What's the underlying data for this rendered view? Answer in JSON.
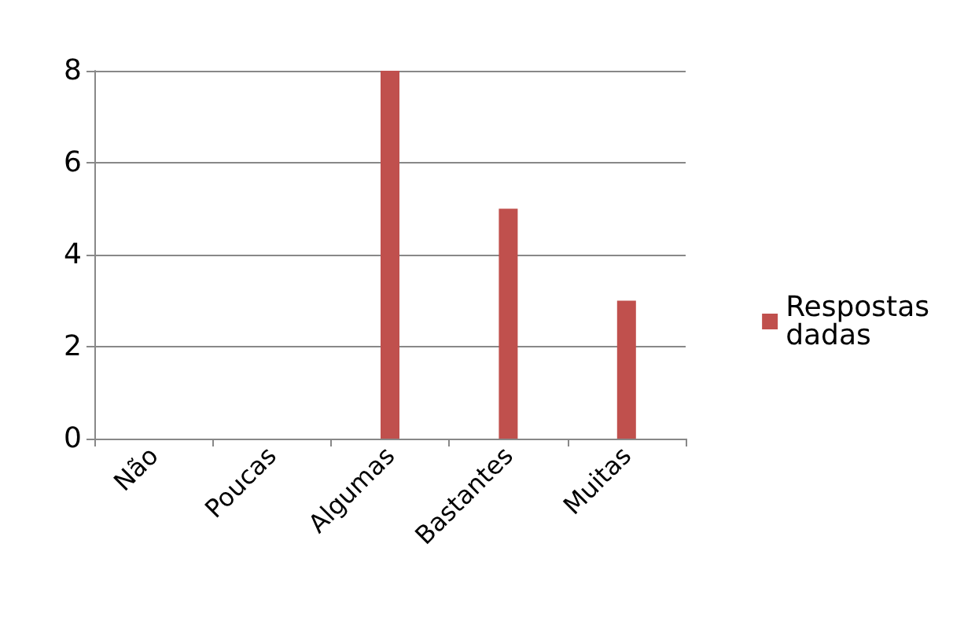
{
  "chart_data": {
    "type": "bar",
    "categories": [
      "Não",
      "Poucas",
      "Algumas",
      "Bastantes",
      "Muitas"
    ],
    "series": [
      {
        "name": "Respostas\ndadas",
        "color": "#c0504d",
        "values": [
          0,
          0,
          8,
          5,
          3
        ]
      }
    ],
    "ylim": [
      0,
      8
    ],
    "yticks": [
      0,
      2,
      4,
      6,
      8
    ],
    "grid": "y",
    "legend": "right"
  }
}
